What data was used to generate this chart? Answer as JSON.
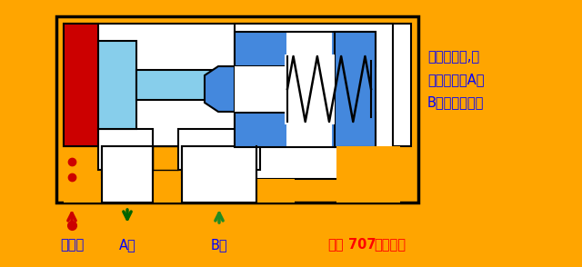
{
  "bg_color": "#FFA500",
  "white_color": "#FFFFFF",
  "light_blue": "#87CEEB",
  "blue": "#4488DD",
  "red_block": "#CC0000",
  "black": "#000000",
  "green_dark": "#006400",
  "green": "#228B22",
  "red_arrow": "#CC0000",
  "text_color_blue": "#0000FF",
  "text_color_red": "#FF0000",
  "text_right_1": "通控制油时,顶",
  "text_right_2": "杆右移，则A，",
  "text_right_3": "B油口始终相通",
  "label_control": "控制口",
  "label_A": "A口",
  "label_B": "B口",
  "label_brand_normal": "化工",
  "label_brand_bold": "707",
  "label_brand_end": "剪辑制作"
}
